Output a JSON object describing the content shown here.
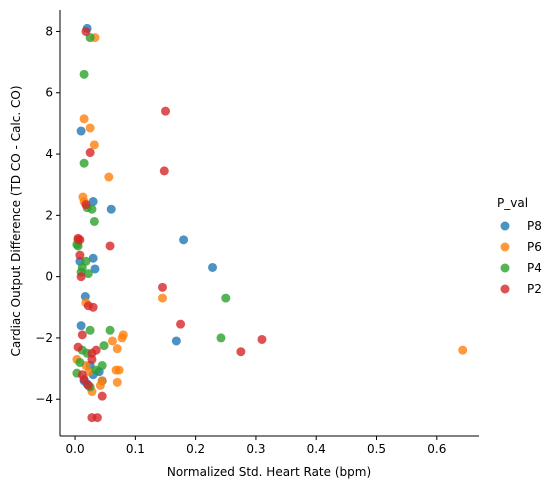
{
  "chart_data": {
    "type": "scatter",
    "xlabel": "Normalized Std. Heart Rate (bpm)",
    "ylabel": "Cardiac Output Difference (TD CO - Calc. CO)",
    "xlim": [
      -0.025,
      0.67
    ],
    "ylim": [
      -5.2,
      8.7
    ],
    "xticks": [
      0.0,
      0.1,
      0.2,
      0.3,
      0.4,
      0.5,
      0.6
    ],
    "xtick_labels": [
      "0.0",
      "0.1",
      "0.2",
      "0.3",
      "0.4",
      "0.5",
      "0.6"
    ],
    "yticks": [
      -4,
      -2,
      0,
      2,
      4,
      6,
      8
    ],
    "ytick_labels": [
      "−4",
      "−2",
      "0",
      "2",
      "4",
      "6",
      "8"
    ],
    "grid": false,
    "legend": {
      "title": "P_val",
      "placement": "right"
    },
    "series": [
      {
        "name": "P8",
        "color": "#1f77b4",
        "points": [
          [
            0.02,
            8.1
          ],
          [
            0.01,
            4.75
          ],
          [
            0.03,
            2.45
          ],
          [
            0.06,
            2.2
          ],
          [
            0.005,
            1.2
          ],
          [
            0.18,
            1.2
          ],
          [
            0.03,
            0.6
          ],
          [
            0.008,
            0.5
          ],
          [
            0.033,
            0.25
          ],
          [
            0.228,
            0.3
          ],
          [
            0.017,
            -0.65
          ],
          [
            0.01,
            -1.6
          ],
          [
            0.168,
            -2.1
          ],
          [
            0.025,
            -2.9
          ],
          [
            0.04,
            -3.1
          ],
          [
            0.03,
            -3.2
          ],
          [
            0.045,
            -3.4
          ],
          [
            0.015,
            -3.4
          ],
          [
            0.02,
            -3.5
          ]
        ]
      },
      {
        "name": "P6",
        "color": "#ff7f0e",
        "points": [
          [
            0.033,
            7.8
          ],
          [
            0.015,
            5.15
          ],
          [
            0.025,
            4.85
          ],
          [
            0.032,
            4.3
          ],
          [
            0.056,
            3.25
          ],
          [
            0.013,
            2.6
          ],
          [
            0.015,
            2.45
          ],
          [
            0.005,
            1.2
          ],
          [
            0.145,
            -0.7
          ],
          [
            0.018,
            -0.85
          ],
          [
            0.08,
            -1.9
          ],
          [
            0.078,
            -2.0
          ],
          [
            0.062,
            -2.1
          ],
          [
            0.07,
            -2.35
          ],
          [
            0.003,
            -2.7
          ],
          [
            0.018,
            -2.9
          ],
          [
            0.068,
            -3.05
          ],
          [
            0.073,
            -3.05
          ],
          [
            0.023,
            -3.1
          ],
          [
            0.045,
            -3.4
          ],
          [
            0.07,
            -3.45
          ],
          [
            0.042,
            -3.55
          ],
          [
            0.028,
            -3.75
          ],
          [
            0.643,
            -2.4
          ]
        ]
      },
      {
        "name": "P4",
        "color": "#2ca02c",
        "points": [
          [
            0.025,
            7.8
          ],
          [
            0.015,
            6.6
          ],
          [
            0.015,
            3.7
          ],
          [
            0.02,
            2.25
          ],
          [
            0.028,
            2.2
          ],
          [
            0.032,
            1.8
          ],
          [
            0.003,
            1.05
          ],
          [
            0.005,
            1.0
          ],
          [
            0.018,
            0.5
          ],
          [
            0.012,
            0.3
          ],
          [
            0.01,
            0.15
          ],
          [
            0.022,
            0.1
          ],
          [
            0.25,
            -0.7
          ],
          [
            0.025,
            -1.75
          ],
          [
            0.058,
            -1.75
          ],
          [
            0.242,
            -2.0
          ],
          [
            0.048,
            -2.25
          ],
          [
            0.012,
            -2.4
          ],
          [
            0.02,
            -2.5
          ],
          [
            0.008,
            -2.8
          ],
          [
            0.045,
            -2.9
          ],
          [
            0.035,
            -3.05
          ],
          [
            0.003,
            -3.15
          ],
          [
            0.025,
            -3.6
          ]
        ]
      },
      {
        "name": "P2",
        "color": "#d62728",
        "points": [
          [
            0.018,
            8.0
          ],
          [
            0.15,
            5.4
          ],
          [
            0.025,
            4.05
          ],
          [
            0.148,
            3.45
          ],
          [
            0.018,
            2.35
          ],
          [
            0.058,
            1.0
          ],
          [
            0.005,
            1.25
          ],
          [
            0.008,
            1.2
          ],
          [
            0.008,
            0.7
          ],
          [
            0.01,
            0.0
          ],
          [
            0.145,
            -0.35
          ],
          [
            0.022,
            -0.95
          ],
          [
            0.03,
            -1.0
          ],
          [
            0.175,
            -1.55
          ],
          [
            0.012,
            -1.9
          ],
          [
            0.31,
            -2.05
          ],
          [
            0.275,
            -2.45
          ],
          [
            0.005,
            -2.3
          ],
          [
            0.035,
            -2.4
          ],
          [
            0.028,
            -2.5
          ],
          [
            0.028,
            -2.7
          ],
          [
            0.012,
            -3.2
          ],
          [
            0.015,
            -3.35
          ],
          [
            0.022,
            -3.55
          ],
          [
            0.045,
            -3.9
          ],
          [
            0.028,
            -4.6
          ],
          [
            0.037,
            -4.6
          ]
        ]
      }
    ]
  }
}
